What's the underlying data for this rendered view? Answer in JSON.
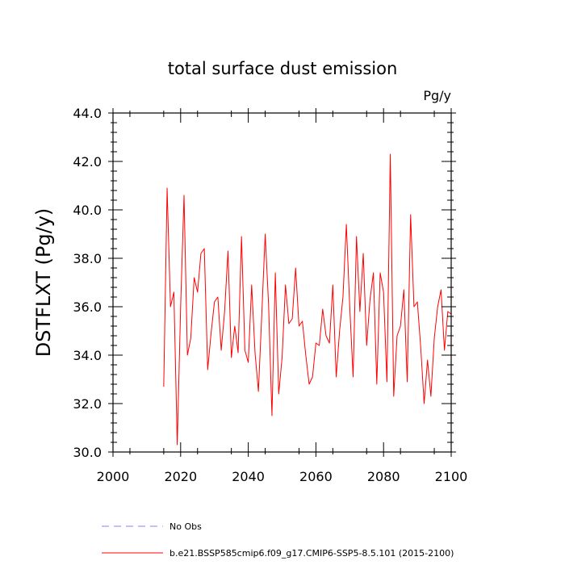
{
  "chart_data": {
    "type": "line",
    "title": "total surface dust emission",
    "units": "Pg/y",
    "xlabel": "",
    "ylabel": "DSTFLXT  (Pg/y)",
    "xlim": [
      2000,
      2100
    ],
    "ylim": [
      30.0,
      44.0
    ],
    "x_ticks": [
      2000,
      2020,
      2040,
      2060,
      2080,
      2100
    ],
    "x_tick_labels": [
      "2000",
      "2020",
      "2040",
      "2060",
      "2080",
      "2100"
    ],
    "y_ticks": [
      30.0,
      32.0,
      34.0,
      36.0,
      38.0,
      40.0,
      42.0,
      44.0
    ],
    "y_tick_labels": [
      "30.0",
      "32.0",
      "34.0",
      "36.0",
      "38.0",
      "40.0",
      "42.0",
      "44.0"
    ],
    "grid": false,
    "legend_position": "bottom-left",
    "series": [
      {
        "name": "b.e21.BSSP585cmip6.f09_g17.CMIP6-SSP5-8.5.101 (2015-2100)",
        "color": "#ff0000",
        "style": "solid",
        "x": [
          2015,
          2016,
          2017,
          2018,
          2019,
          2020,
          2021,
          2022,
          2023,
          2024,
          2025,
          2026,
          2027,
          2028,
          2029,
          2030,
          2031,
          2032,
          2033,
          2034,
          2035,
          2036,
          2037,
          2038,
          2039,
          2040,
          2041,
          2042,
          2043,
          2044,
          2045,
          2046,
          2047,
          2048,
          2049,
          2050,
          2051,
          2052,
          2053,
          2054,
          2055,
          2056,
          2057,
          2058,
          2059,
          2060,
          2061,
          2062,
          2063,
          2064,
          2065,
          2066,
          2067,
          2068,
          2069,
          2070,
          2071,
          2072,
          2073,
          2074,
          2075,
          2076,
          2077,
          2078,
          2079,
          2080,
          2081,
          2082,
          2083,
          2084,
          2085,
          2086,
          2087,
          2088,
          2089,
          2090,
          2091,
          2092,
          2093,
          2094,
          2095,
          2096,
          2097,
          2098,
          2099,
          2100
        ],
        "values": [
          32.7,
          40.9,
          36.0,
          36.6,
          30.3,
          36.0,
          40.6,
          34.0,
          34.7,
          37.2,
          36.6,
          38.2,
          38.4,
          33.4,
          34.9,
          36.2,
          36.4,
          34.2,
          35.8,
          38.3,
          33.9,
          35.2,
          34.1,
          38.9,
          34.2,
          33.7,
          36.9,
          34.1,
          32.5,
          35.7,
          39.0,
          36.1,
          31.5,
          37.4,
          32.4,
          33.9,
          36.9,
          35.3,
          35.5,
          37.6,
          35.2,
          35.4,
          34.0,
          32.8,
          33.1,
          34.5,
          34.4,
          35.9,
          34.8,
          34.5,
          36.9,
          33.1,
          35.0,
          36.4,
          39.4,
          36.0,
          33.1,
          38.9,
          35.8,
          38.2,
          34.4,
          36.3,
          37.4,
          32.8,
          37.4,
          36.6,
          32.9,
          42.3,
          32.3,
          34.8,
          35.2,
          36.7,
          32.9,
          39.8,
          36.0,
          36.2,
          34.3,
          32.0,
          33.8,
          32.3,
          34.7,
          36.0,
          36.7,
          34.2,
          35.8,
          35.7
        ]
      },
      {
        "name": "No Obs",
        "color": "#8080ff",
        "style": "dashed",
        "x": [],
        "values": []
      }
    ]
  }
}
